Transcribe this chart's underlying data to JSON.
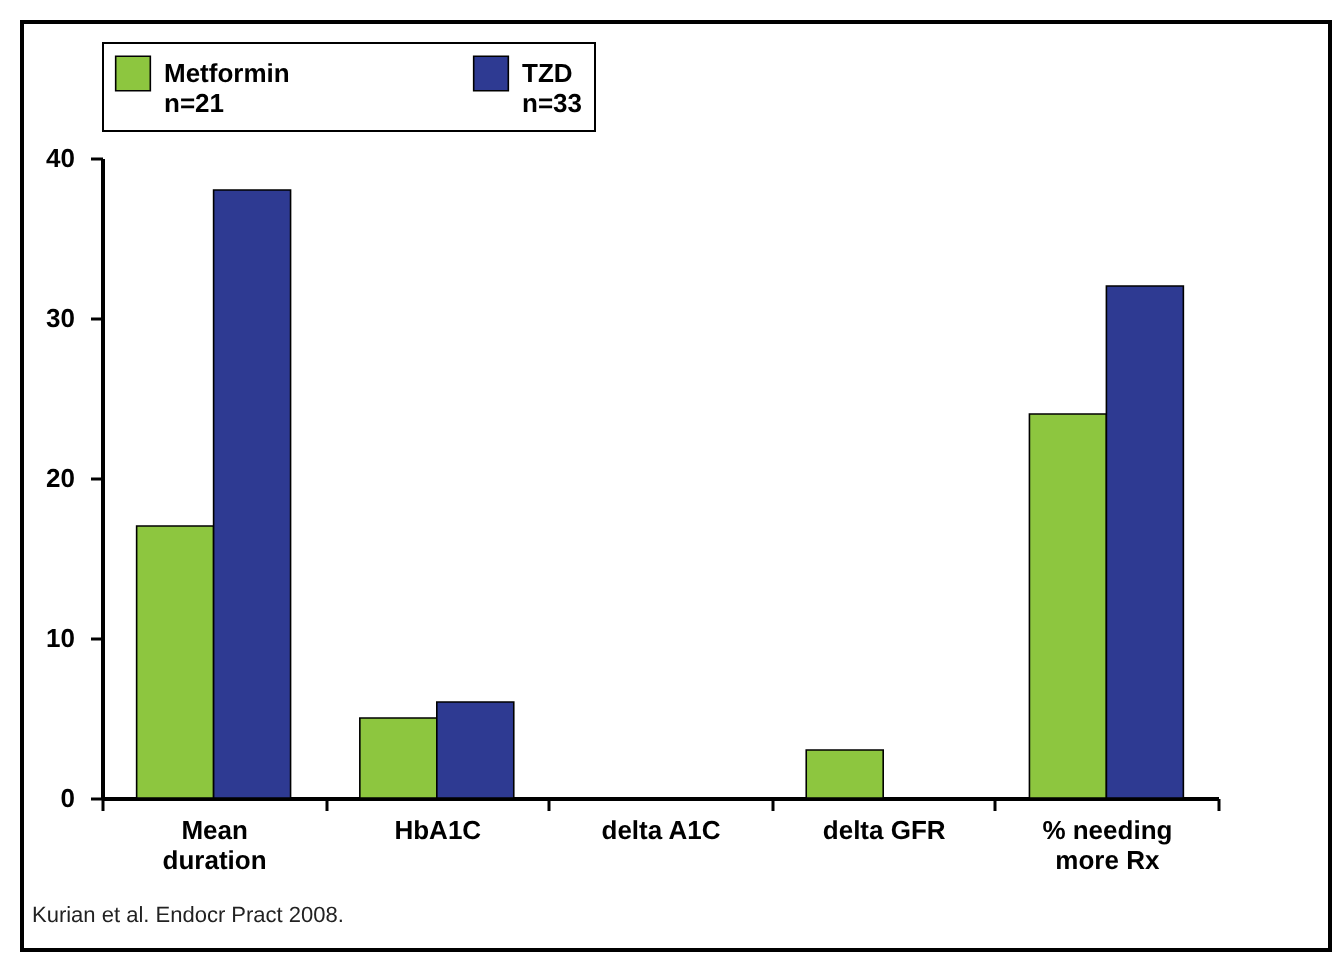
{
  "chart_data": {
    "type": "bar",
    "categories": [
      "Mean duration",
      "HbA1C",
      "delta A1C",
      "delta GFR",
      "% needing more Rx"
    ],
    "series": [
      {
        "name": "Metformin n=21",
        "color": "#8dc63f",
        "values": [
          17,
          5,
          null,
          3,
          24
        ]
      },
      {
        "name": "TZD n=33",
        "color": "#2e3a92",
        "values": [
          38,
          6,
          null,
          null,
          32
        ]
      }
    ],
    "ylim": [
      0,
      40
    ],
    "yticks": [
      0,
      10,
      20,
      30,
      40
    ],
    "legend": "top",
    "annotations": [
      "Kurian et al. Endocr Pract 2008."
    ]
  }
}
